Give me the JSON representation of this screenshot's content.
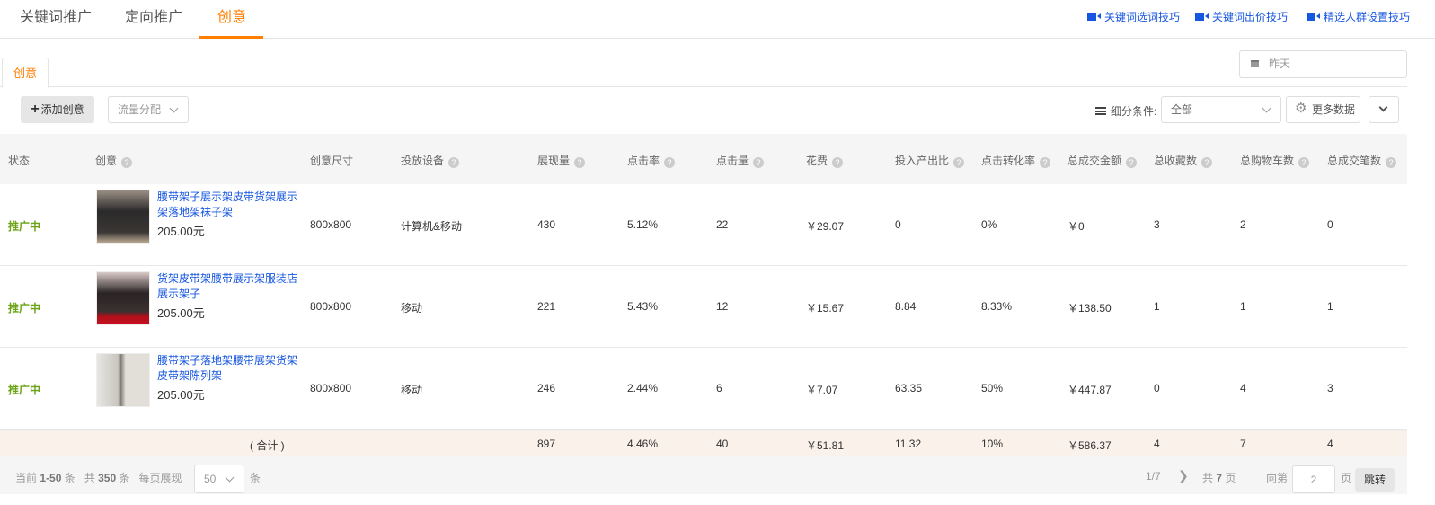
{
  "top_tabs": [
    {
      "label": "关键词推广"
    },
    {
      "label": "定向推广"
    },
    {
      "label": "创意"
    }
  ],
  "help_links": [
    {
      "label": "关键词选词技巧"
    },
    {
      "label": "关键词出价技巧"
    },
    {
      "label": "精选人群设置技巧"
    }
  ],
  "sub_tab": "创意",
  "date_filter": "昨天",
  "toolbar": {
    "add_label": "添加创意",
    "traffic_label": "流量分配",
    "segment_label": "细分条件:",
    "segment_value": "全部",
    "more_data": "更多数据"
  },
  "accent_color": "#ff7f00",
  "link_color": "#1656e0",
  "status_color": "#6aa314",
  "columns": [
    "状态",
    "创意",
    "创意尺寸",
    "投放设备",
    "展现量",
    "点击率",
    "点击量",
    "花费",
    "投入产出比",
    "点击转化率",
    "总成交金额",
    "总收藏数",
    "总购物车数",
    "总成交笔数"
  ],
  "rows": [
    {
      "status": "推广中",
      "title": "腰带架子展示架皮带货架展示架落地架袜子架",
      "price": "205.00元",
      "size": "800x800",
      "device": "计算机&移动",
      "impressions": "430",
      "ctr": "5.12%",
      "clicks": "22",
      "cost": "￥29.07",
      "roi": "0",
      "cvr": "0%",
      "gmv": "￥0",
      "fav": "3",
      "cart": "2",
      "orders": "0"
    },
    {
      "status": "推广中",
      "title": "货架皮带架腰带展示架服装店展示架子",
      "price": "205.00元",
      "size": "800x800",
      "device": "移动",
      "impressions": "221",
      "ctr": "5.43%",
      "clicks": "12",
      "cost": "￥15.67",
      "roi": "8.84",
      "cvr": "8.33%",
      "gmv": "￥138.50",
      "fav": "1",
      "cart": "1",
      "orders": "1"
    },
    {
      "status": "推广中",
      "title": "腰带架子落地架腰带展架货架皮带架陈列架",
      "price": "205.00元",
      "size": "800x800",
      "device": "移动",
      "impressions": "246",
      "ctr": "2.44%",
      "clicks": "6",
      "cost": "￥7.07",
      "roi": "63.35",
      "cvr": "50%",
      "gmv": "￥447.87",
      "fav": "0",
      "cart": "4",
      "orders": "3"
    }
  ],
  "total": {
    "label": "( 合计 )",
    "impressions": "897",
    "ctr": "4.46%",
    "clicks": "40",
    "cost": "￥51.81",
    "roi": "11.32",
    "cvr": "10%",
    "gmv": "￥586.37",
    "fav": "4",
    "cart": "7",
    "orders": "4"
  },
  "pagination": {
    "current_prefix": "当前",
    "current_range": "1-50",
    "unit": "条",
    "total_prefix": "共",
    "total": "350",
    "per_page_label": "每页展现",
    "per_page": "50",
    "page_status": "1/7",
    "pages_prefix": "共",
    "pages": "7",
    "pages_unit": "页",
    "goto_label": "向第",
    "goto_value": "2",
    "goto_unit": "页",
    "jump_label": "跳转"
  }
}
